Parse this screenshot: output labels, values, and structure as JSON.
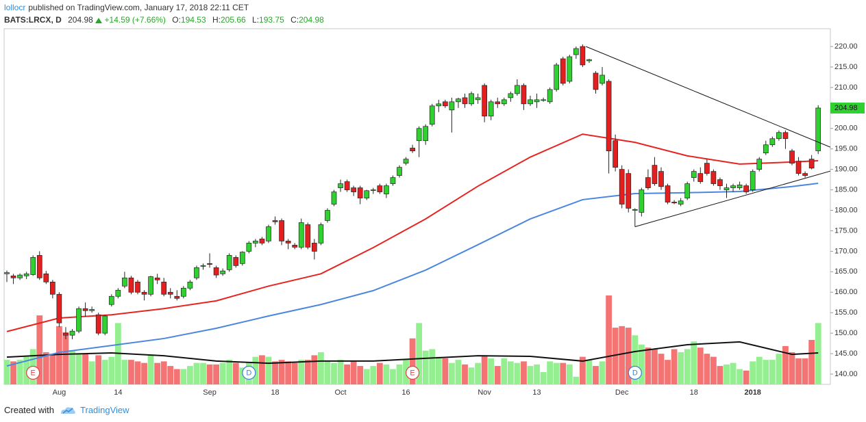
{
  "header": {
    "author": "lollocr",
    "published": "published on TradingView.com, January 17, 2018 22:11 CET",
    "symbol": "BATS:LRCX, D",
    "change": "+14.59 (+7.66%)",
    "o": "O:",
    "h": "H:",
    "l": "L:",
    "c": "C:"
  },
  "footer": {
    "created": "Created with",
    "brand": "TradingView"
  },
  "chart_data": {
    "type": "candlestick",
    "categories": [
      null,
      null,
      null,
      null,
      null,
      null,
      null,
      null,
      "Aug",
      null,
      null,
      null,
      null,
      null,
      null,
      null,
      null,
      "14",
      null,
      null,
      null,
      null,
      null,
      null,
      null,
      null,
      null,
      null,
      null,
      null,
      null,
      "Sep",
      null,
      null,
      null,
      null,
      null,
      null,
      null,
      null,
      null,
      "18",
      null,
      null,
      null,
      null,
      null,
      null,
      null,
      null,
      null,
      "Oct",
      null,
      null,
      null,
      null,
      null,
      null,
      null,
      null,
      null,
      "16",
      null,
      null,
      null,
      null,
      null,
      null,
      null,
      null,
      null,
      null,
      null,
      "Nov",
      null,
      null,
      null,
      null,
      null,
      null,
      null,
      "13",
      null,
      null,
      null,
      null,
      null,
      null,
      null,
      null,
      null,
      null,
      null,
      null,
      "Dec",
      null,
      null,
      null,
      null,
      null,
      null,
      null,
      null,
      null,
      null,
      "18",
      null,
      null,
      null,
      null,
      null,
      null,
      null,
      null,
      "2018",
      null,
      null,
      null,
      null,
      null,
      null,
      null,
      null,
      null,
      null
    ],
    "open": [
      164.5,
      164.0,
      163.5,
      164.0,
      164.3,
      169.0,
      164.5,
      162.5,
      159.5,
      150.0,
      149.5,
      150.5,
      156.0,
      155.5,
      154.5,
      150.0,
      157.0,
      159.0,
      161.5,
      163.5,
      162.5,
      160.0,
      159.5,
      163.5,
      162.5,
      160.0,
      159.0,
      159.0,
      161.0,
      163.5,
      166.5,
      167.0,
      166.0,
      164.5,
      165.5,
      168.5,
      167.0,
      170.0,
      172.0,
      173.0,
      172.5,
      177.5,
      177.5,
      172.5,
      171.5,
      171.0,
      176.5,
      172.0,
      172.0,
      177.5,
      181.5,
      185.5,
      187.0,
      185.5,
      185.5,
      183.0,
      185.0,
      186.0,
      184.0,
      186.5,
      188.5,
      191.5,
      195.2,
      197.0,
      197.0,
      201.0,
      205.5,
      206.5,
      204.5,
      206.5,
      207.5,
      206.0,
      207.0,
      210.5,
      203.0,
      206.5,
      206.0,
      207.5,
      208.5,
      210.5,
      206.0,
      206.5,
      207.0,
      206.5,
      209.5,
      217.0,
      211.5,
      218.0,
      220.0,
      216.5,
      213.5,
      211.0,
      211.5,
      197.0,
      190.0,
      189.0,
      180.0,
      179.5,
      188.0,
      191.0,
      189.5,
      186.0,
      182.0,
      181.5,
      183.0,
      188.0,
      189.0,
      191.5,
      189.5,
      187.5,
      185.0,
      185.5,
      185.5,
      186.0,
      185.0,
      190.0,
      194.0,
      196.0,
      197.5,
      199.0,
      194.5,
      192.0,
      189.0,
      192.5,
      194.53
    ],
    "high": [
      165.3,
      164.5,
      164.6,
      165.0,
      169.0,
      170.0,
      165.2,
      163.0,
      160.0,
      151.5,
      151.0,
      156.5,
      157.5,
      156.5,
      155.0,
      154.5,
      159.5,
      161.0,
      165.0,
      164.0,
      163.0,
      160.5,
      164.0,
      164.5,
      163.5,
      161.0,
      160.5,
      161.5,
      163.0,
      166.5,
      167.0,
      169.5,
      166.5,
      165.8,
      169.5,
      169.0,
      170.0,
      172.5,
      173.0,
      173.5,
      176.5,
      178.5,
      178.0,
      173.0,
      172.0,
      178.0,
      177.0,
      173.0,
      177.0,
      180.5,
      185.0,
      187.5,
      187.5,
      186.0,
      186.0,
      185.0,
      185.5,
      186.5,
      186.5,
      188.5,
      191.0,
      193.0,
      196.0,
      200.5,
      201.0,
      206.0,
      207.0,
      207.0,
      207.5,
      207.5,
      208.5,
      209.0,
      208.5,
      211.0,
      207.0,
      207.5,
      207.5,
      209.0,
      212.0,
      211.0,
      208.0,
      208.5,
      207.5,
      210.0,
      216.0,
      217.5,
      218.0,
      220.0,
      220.5,
      217.0,
      214.0,
      215.0,
      212.0,
      198.5,
      191.0,
      190.0,
      180.5,
      185.5,
      190.0,
      193.0,
      190.5,
      186.5,
      182.5,
      183.0,
      187.0,
      190.0,
      190.5,
      192.5,
      190.0,
      188.0,
      186.5,
      186.5,
      187.0,
      186.5,
      190.0,
      193.0,
      197.0,
      198.0,
      199.5,
      199.5,
      195.0,
      193.0,
      189.5,
      193.5,
      205.66
    ],
    "low": [
      162.5,
      162.0,
      163.0,
      163.2,
      164.0,
      163.0,
      162.0,
      158.5,
      151.5,
      148.5,
      148.5,
      150.0,
      154.0,
      155.0,
      149.5,
      149.5,
      156.5,
      158.5,
      161.0,
      159.5,
      159.5,
      158.0,
      159.0,
      162.0,
      159.0,
      158.5,
      158.0,
      158.5,
      160.5,
      163.0,
      165.5,
      166.0,
      163.5,
      164.0,
      165.0,
      166.0,
      166.5,
      169.5,
      171.0,
      171.5,
      172.0,
      176.5,
      171.5,
      170.5,
      170.5,
      170.5,
      170.5,
      168.0,
      171.5,
      177.0,
      181.0,
      184.5,
      184.5,
      183.5,
      181.5,
      182.5,
      184.0,
      184.0,
      183.0,
      186.0,
      188.0,
      191.0,
      194.0,
      193.0,
      196.0,
      200.5,
      204.0,
      205.0,
      199.0,
      205.0,
      205.0,
      205.5,
      206.0,
      201.5,
      202.0,
      205.0,
      205.5,
      206.5,
      208.0,
      204.5,
      205.5,
      205.0,
      206.5,
      206.0,
      209.0,
      210.5,
      211.0,
      217.0,
      215.0,
      216.0,
      208.5,
      210.5,
      189.0,
      189.5,
      180.5,
      179.5,
      176.0,
      178.5,
      185.0,
      186.0,
      185.0,
      181.5,
      181.5,
      181.0,
      182.5,
      187.0,
      186.5,
      188.5,
      186.0,
      185.0,
      183.0,
      184.5,
      185.0,
      184.0,
      184.5,
      189.5,
      193.5,
      195.5,
      197.0,
      195.0,
      191.0,
      188.5,
      188.0,
      190.0,
      193.75
    ],
    "close": [
      164.8,
      163.5,
      164.2,
      164.5,
      168.5,
      163.5,
      162.5,
      159.5,
      152.5,
      149.5,
      150.5,
      156.0,
      155.5,
      155.8,
      150.0,
      154.2,
      159.0,
      160.5,
      163.5,
      160.0,
      160.0,
      159.5,
      163.8,
      163.0,
      159.5,
      159.5,
      158.5,
      161.0,
      162.5,
      166.0,
      166.5,
      166.8,
      164.2,
      165.2,
      169.0,
      166.5,
      169.8,
      172.0,
      172.5,
      172.0,
      176.0,
      177.2,
      172.5,
      172.0,
      171.0,
      177.0,
      171.0,
      170.0,
      176.5,
      180.0,
      184.5,
      186.5,
      185.0,
      184.5,
      183.0,
      184.8,
      185.0,
      184.5,
      186.0,
      188.0,
      190.5,
      192.5,
      194.5,
      200.0,
      200.5,
      205.5,
      206.0,
      205.5,
      206.5,
      207.2,
      206.0,
      208.5,
      207.5,
      203.0,
      206.5,
      206.0,
      207.0,
      208.5,
      210.5,
      206.0,
      207.0,
      207.0,
      207.0,
      209.5,
      215.5,
      211.0,
      217.5,
      219.5,
      215.5,
      216.8,
      209.5,
      213.0,
      194.5,
      190.5,
      181.5,
      180.5,
      180.2,
      185.0,
      185.5,
      186.5,
      185.8,
      182.0,
      181.8,
      182.3,
      186.5,
      189.5,
      187.0,
      189.0,
      186.5,
      186.0,
      185.5,
      186.0,
      186.2,
      184.5,
      189.5,
      192.5,
      196.0,
      197.5,
      199.0,
      197.5,
      191.5,
      189.0,
      188.5,
      190.3,
      204.98
    ],
    "volume": [
      1.6,
      1.5,
      1.6,
      1.8,
      2.3,
      4.5,
      2.1,
      2.0,
      3.8,
      3.4,
      2.2,
      2.0,
      2.0,
      1.5,
      1.9,
      1.6,
      1.8,
      4.0,
      1.6,
      1.6,
      1.5,
      1.4,
      1.9,
      1.4,
      1.5,
      1.2,
      1.0,
      1.0,
      1.2,
      1.4,
      1.4,
      1.3,
      1.3,
      1.4,
      1.6,
      1.4,
      1.1,
      1.4,
      1.8,
      1.9,
      1.8,
      1.5,
      1.6,
      1.5,
      1.4,
      1.6,
      1.6,
      1.9,
      2.1,
      1.5,
      1.4,
      1.6,
      1.3,
      1.5,
      1.2,
      1.0,
      1.2,
      1.4,
      1.3,
      1.0,
      1.3,
      1.6,
      3.0,
      4.0,
      2.2,
      2.3,
      1.8,
      1.7,
      1.4,
      1.6,
      1.3,
      1.1,
      1.4,
      1.9,
      1.7,
      1.2,
      1.7,
      1.5,
      1.4,
      1.5,
      1.2,
      1.3,
      0.8,
      1.5,
      1.4,
      1.4,
      1.3,
      0.5,
      1.8,
      1.6,
      1.2,
      1.5,
      5.8,
      3.7,
      3.8,
      3.7,
      3.2,
      2.6,
      2.4,
      2.3,
      2.0,
      1.6,
      2.3,
      2.1,
      2.3,
      2.8,
      2.4,
      2.0,
      1.8,
      1.2,
      1.3,
      1.4,
      1.0,
      0.9,
      1.5,
      1.8,
      1.6,
      1.6,
      2.0,
      2.5,
      2.1,
      1.7,
      1.7,
      2.9,
      4.0
    ],
    "up_color": "#2fd02f",
    "down_color": "#e41f1f",
    "up_volume_color": "#93ef8f",
    "down_volume_color": "#f47474",
    "moving_averages": [
      {
        "color": "#e8231f",
        "x": [
          0,
          8,
          16,
          24,
          32,
          40,
          48,
          56,
          64,
          72,
          80,
          88,
          96,
          104,
          112,
          120,
          124
        ],
        "values": [
          150.4,
          153.7,
          154.5,
          156.0,
          157.9,
          161.5,
          164.5,
          170.9,
          177.9,
          185.9,
          193.0,
          198.6,
          196.6,
          193.3,
          191.3,
          191.8,
          192.1
        ]
      },
      {
        "color": "#4a86e0",
        "x": [
          0,
          8,
          16,
          24,
          32,
          40,
          48,
          56,
          64,
          72,
          80,
          88,
          96,
          104,
          112,
          120,
          124
        ],
        "values": [
          142.0,
          145.3,
          147.0,
          148.7,
          151.2,
          154.2,
          157.0,
          160.4,
          165.4,
          171.6,
          177.9,
          182.6,
          184.1,
          184.3,
          184.6,
          185.8,
          186.6
        ]
      }
    ],
    "volume_ma": {
      "color": "#111111",
      "x": [
        0,
        8,
        16,
        24,
        32,
        40,
        48,
        56,
        64,
        72,
        80,
        88,
        96,
        104,
        112,
        120,
        124
      ],
      "values": [
        1.78,
        1.96,
        2.05,
        1.87,
        1.52,
        1.38,
        1.52,
        1.52,
        1.7,
        1.87,
        1.83,
        1.52,
        2.14,
        2.59,
        2.77,
        1.96,
        2.05
      ]
    },
    "trend_lines": [
      {
        "x": [
          88.5,
          125.9
        ],
        "y": [
          220.0,
          195.4
        ]
      },
      {
        "x": [
          96,
          125.9
        ],
        "y": [
          176.0,
          189.6
        ]
      }
    ],
    "events": [
      {
        "label": "E",
        "x": 4,
        "color": "#e04040"
      },
      {
        "label": "D",
        "x": 37,
        "color": "#3a7fd8"
      },
      {
        "label": "E",
        "x": 62,
        "color": "#e04040"
      },
      {
        "label": "D",
        "x": 96,
        "color": "#3a7fd8"
      }
    ],
    "ylim": [
      137.5,
      224.34
    ],
    "yticks": [
      {
        "value": 140,
        "label": "140.00"
      },
      {
        "value": 145,
        "label": "145.00"
      },
      {
        "value": 150,
        "label": "150.00"
      },
      {
        "value": 155,
        "label": "155.00"
      },
      {
        "value": 160,
        "label": "160.00"
      },
      {
        "value": 165,
        "label": "165.00"
      },
      {
        "value": 170,
        "label": "170.00"
      },
      {
        "value": 175,
        "label": "175.00"
      },
      {
        "value": 180,
        "label": "180.00"
      },
      {
        "value": 185,
        "label": "185.00"
      },
      {
        "value": 190,
        "label": "190.00"
      },
      {
        "value": 195,
        "label": "195.00"
      },
      {
        "value": 200,
        "label": "200.00"
      },
      {
        "value": 205,
        "label": "205.00"
      },
      {
        "value": 210,
        "label": "210.00"
      },
      {
        "value": 215,
        "label": "215.00"
      },
      {
        "value": 220,
        "label": "220.00"
      }
    ]
  }
}
